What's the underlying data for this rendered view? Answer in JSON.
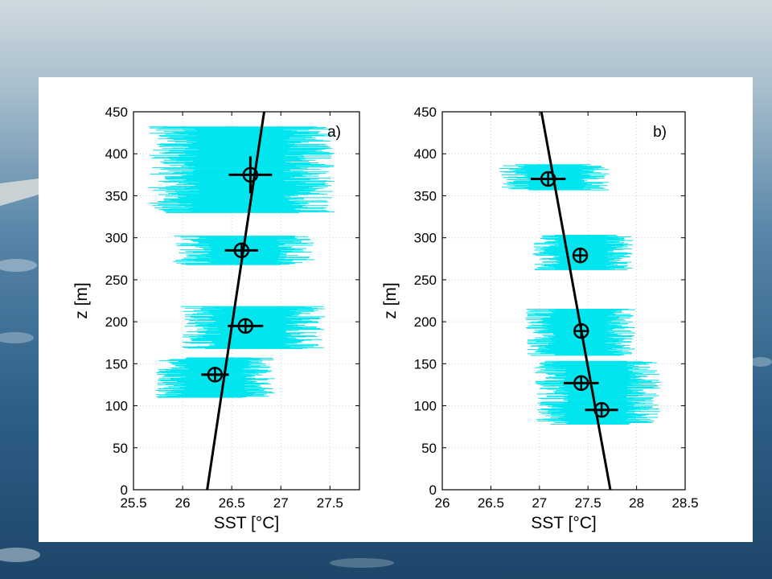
{
  "slide": {
    "background_colors": {
      "sky": "#c7d4dc",
      "sea_deep": "#1e4a70",
      "panel": "#ffffff"
    }
  },
  "colors": {
    "scatter": "#00e5ee",
    "fit_line": "#000000",
    "marker": "#000000",
    "grid": "#cfcfcf"
  },
  "chart_data": [
    {
      "type": "scatter",
      "panel_label": "a)",
      "xlabel": "SST [°C]",
      "ylabel": "z [m]",
      "xlim": [
        25.5,
        27.8
      ],
      "ylim": [
        0,
        450
      ],
      "xticks": [
        25.5,
        26,
        26.5,
        27,
        27.5
      ],
      "xtick_labels": [
        "25.5",
        "26",
        "26.5",
        "27",
        "27.5"
      ],
      "yticks": [
        0,
        50,
        100,
        150,
        200,
        250,
        300,
        350,
        400,
        450
      ],
      "ytick_labels": [
        "0",
        "50",
        "100",
        "150",
        "200",
        "250",
        "300",
        "350",
        "400",
        "450"
      ],
      "grid": true,
      "fit_line": {
        "x": [
          26.25,
          26.83
        ],
        "z": [
          0,
          450
        ]
      },
      "means": [
        {
          "sst": 26.69,
          "z": 375,
          "xerr": 0.22,
          "zerr": 22
        },
        {
          "sst": 26.6,
          "z": 285,
          "xerr": 0.17,
          "zerr": 0
        },
        {
          "sst": 26.64,
          "z": 195,
          "xerr": 0.18,
          "zerr": 0
        },
        {
          "sst": 26.33,
          "z": 137,
          "xerr": 0.14,
          "zerr": 0
        }
      ],
      "clouds": [
        {
          "z_min": 330,
          "z_max": 432,
          "sst_min": 25.65,
          "sst_max": 27.55
        },
        {
          "z_min": 268,
          "z_max": 302,
          "sst_min": 25.9,
          "sst_max": 27.35
        },
        {
          "z_min": 168,
          "z_max": 218,
          "sst_min": 25.98,
          "sst_max": 27.45
        },
        {
          "z_min": 110,
          "z_max": 157,
          "sst_min": 25.72,
          "sst_max": 26.95
        }
      ]
    },
    {
      "type": "scatter",
      "panel_label": "b)",
      "xlabel": "SST [°C]",
      "ylabel": "z [m]",
      "xlim": [
        26,
        28.5
      ],
      "ylim": [
        0,
        450
      ],
      "xticks": [
        26,
        26.5,
        27,
        27.5,
        28,
        28.5
      ],
      "xtick_labels": [
        "26",
        "26.5",
        "27",
        "27.5",
        "28",
        "28.5"
      ],
      "yticks": [
        0,
        50,
        100,
        150,
        200,
        250,
        300,
        350,
        400,
        450
      ],
      "ytick_labels": [
        "0",
        "50",
        "100",
        "150",
        "200",
        "250",
        "300",
        "350",
        "400",
        "450"
      ],
      "grid": true,
      "fit_line": {
        "x": [
          27.73,
          27.02
        ],
        "z": [
          0,
          450
        ]
      },
      "means": [
        {
          "sst": 27.09,
          "z": 370,
          "xerr": 0.18,
          "zerr": 0
        },
        {
          "sst": 27.42,
          "z": 279,
          "xerr": 0,
          "zerr": 0
        },
        {
          "sst": 27.43,
          "z": 189,
          "xerr": 0,
          "zerr": 0
        },
        {
          "sst": 27.43,
          "z": 127,
          "xerr": 0.18,
          "zerr": 0
        },
        {
          "sst": 27.64,
          "z": 95,
          "xerr": 0.17,
          "zerr": 0
        }
      ],
      "clouds": [
        {
          "z_min": 357,
          "z_max": 387,
          "sst_min": 26.58,
          "sst_max": 27.75
        },
        {
          "z_min": 262,
          "z_max": 303,
          "sst_min": 26.93,
          "sst_max": 27.97
        },
        {
          "z_min": 160,
          "z_max": 215,
          "sst_min": 26.85,
          "sst_max": 28.0
        },
        {
          "z_min": 78,
          "z_max": 153,
          "sst_min": 26.95,
          "sst_max": 28.25
        }
      ]
    }
  ]
}
